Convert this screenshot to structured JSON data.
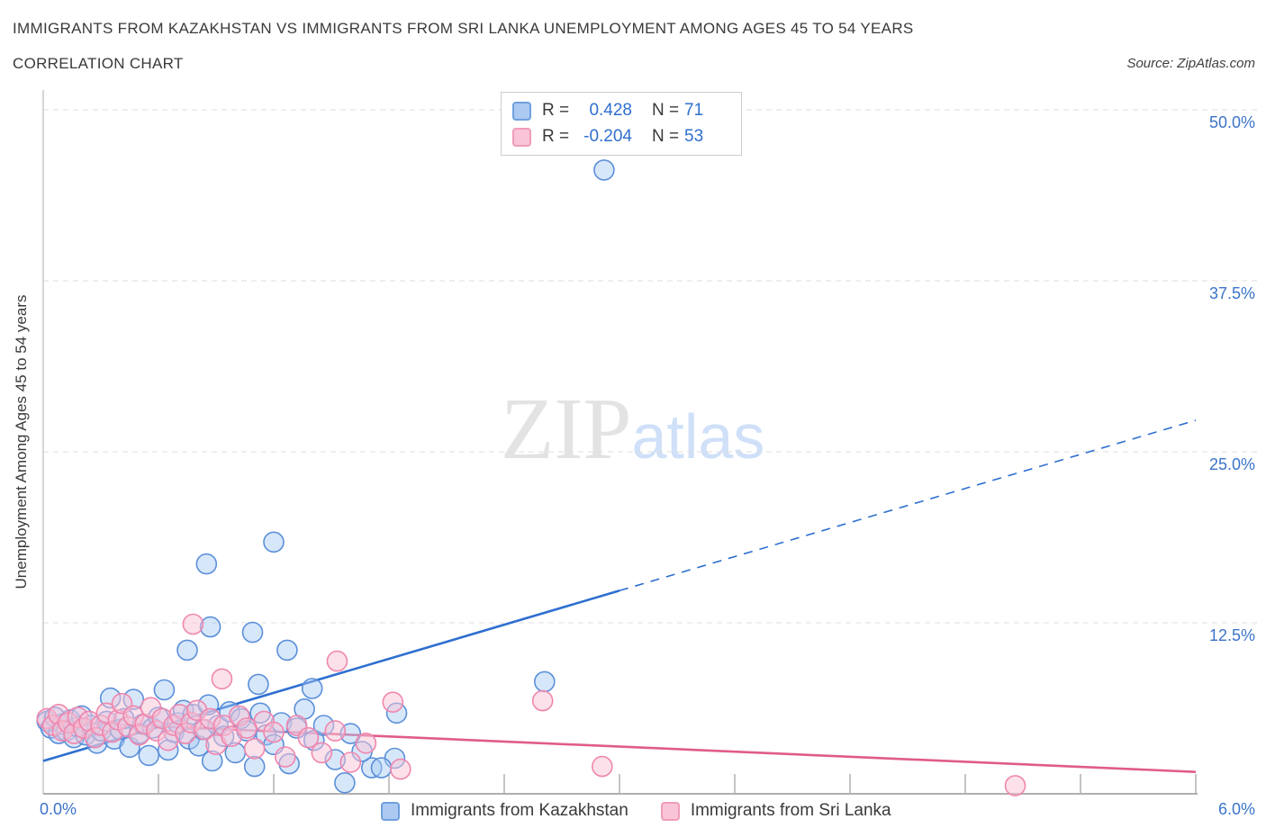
{
  "header": {
    "title": "IMMIGRANTS FROM KAZAKHSTAN VS IMMIGRANTS FROM SRI LANKA UNEMPLOYMENT AMONG AGES 45 TO 54 YEARS",
    "subtitle": "CORRELATION CHART",
    "source": "Source: ZipAtlas.com"
  },
  "watermark": {
    "zip": "ZIP",
    "atlas": "atlas"
  },
  "stats_legend": {
    "rows": [
      {
        "series": "Immigrants from Kazakhstan",
        "r_label": "R =",
        "r_value": "0.428",
        "n_label": "N =",
        "n_value": "71"
      },
      {
        "series": "Immigrants from Sri Lanka",
        "r_label": "R =",
        "r_value": "-0.204",
        "n_label": "N =",
        "n_value": "53"
      }
    ]
  },
  "bottom_legend": {
    "items": [
      {
        "label": "Immigrants from Kazakhstan",
        "fill": "#abc9f1",
        "border": "#70a0dd"
      },
      {
        "label": "Immigrants from Sri Lanka",
        "fill": "#f9c4d7",
        "border": "#ef9cba"
      }
    ]
  },
  "chart_data": {
    "type": "scatter",
    "ylabel": "Unemployment Among Ages 45 to 54 years",
    "x_range": [
      0,
      6.0
    ],
    "y_range": [
      0,
      51.4
    ],
    "grid": "horizontal-dashed",
    "legend_position": "bottom",
    "x_axis_labels": {
      "left": "0.0%",
      "right": "6.0%"
    },
    "y_ticks": [
      {
        "value": 50.0,
        "label": "50.0%"
      },
      {
        "value": 37.5,
        "label": "37.5%"
      },
      {
        "value": 25.0,
        "label": "25.0%"
      },
      {
        "value": 12.5,
        "label": "12.5%"
      }
    ],
    "x_tick_values": [
      0.6,
      1.2,
      1.8,
      2.4,
      3.0,
      3.6,
      4.2,
      4.8,
      5.4,
      6.0
    ],
    "series": [
      {
        "name": "Immigrants from Kazakhstan",
        "r": 0.428,
        "n": 71,
        "fill": "rgba(166,201,243,0.45)",
        "stroke": "#5b8fd9",
        "points": [
          [
            2.92,
            45.6
          ],
          [
            1.2,
            18.4
          ],
          [
            0.85,
            16.8
          ],
          [
            0.87,
            12.2
          ],
          [
            1.09,
            11.8
          ],
          [
            0.75,
            10.5
          ],
          [
            1.27,
            10.5
          ],
          [
            2.61,
            8.2
          ],
          [
            1.12,
            8.0
          ],
          [
            1.4,
            7.7
          ],
          [
            1.84,
            5.9
          ],
          [
            1.83,
            2.6
          ],
          [
            1.71,
            1.9
          ],
          [
            1.76,
            1.9
          ],
          [
            1.57,
            0.8
          ],
          [
            0.02,
            5.3
          ],
          [
            0.04,
            4.8
          ],
          [
            0.06,
            5.6
          ],
          [
            0.08,
            4.4
          ],
          [
            0.1,
            5.1
          ],
          [
            0.12,
            4.6
          ],
          [
            0.14,
            5.4
          ],
          [
            0.16,
            4.1
          ],
          [
            0.18,
            4.9
          ],
          [
            0.2,
            5.7
          ],
          [
            0.22,
            4.3
          ],
          [
            0.25,
            5.0
          ],
          [
            0.28,
            3.7
          ],
          [
            0.3,
            4.6
          ],
          [
            0.33,
            5.3
          ],
          [
            0.35,
            7.0
          ],
          [
            0.37,
            4.0
          ],
          [
            0.4,
            4.7
          ],
          [
            0.42,
            5.5
          ],
          [
            0.45,
            3.4
          ],
          [
            0.47,
            6.9
          ],
          [
            0.5,
            4.4
          ],
          [
            0.52,
            5.1
          ],
          [
            0.55,
            2.8
          ],
          [
            0.57,
            4.8
          ],
          [
            0.6,
            5.6
          ],
          [
            0.63,
            7.6
          ],
          [
            0.65,
            3.2
          ],
          [
            0.68,
            4.5
          ],
          [
            0.7,
            5.2
          ],
          [
            0.73,
            6.1
          ],
          [
            0.76,
            4.0
          ],
          [
            0.78,
            5.8
          ],
          [
            0.81,
            3.5
          ],
          [
            0.83,
            4.7
          ],
          [
            0.86,
            6.5
          ],
          [
            0.88,
            2.4
          ],
          [
            0.91,
            5.0
          ],
          [
            0.94,
            4.2
          ],
          [
            0.97,
            6.0
          ],
          [
            1.0,
            3.0
          ],
          [
            1.03,
            5.5
          ],
          [
            1.06,
            4.6
          ],
          [
            1.1,
            2.0
          ],
          [
            1.13,
            5.9
          ],
          [
            1.16,
            4.3
          ],
          [
            1.2,
            3.6
          ],
          [
            1.24,
            5.2
          ],
          [
            1.28,
            2.2
          ],
          [
            1.32,
            4.8
          ],
          [
            1.36,
            6.2
          ],
          [
            1.41,
            3.9
          ],
          [
            1.46,
            5.0
          ],
          [
            1.52,
            2.5
          ],
          [
            1.6,
            4.4
          ],
          [
            1.66,
            3.1
          ]
        ]
      },
      {
        "name": "Immigrants from Sri Lanka",
        "r": -0.204,
        "n": 53,
        "fill": "rgba(249,195,214,0.5)",
        "stroke": "#ef86ae",
        "points": [
          [
            0.78,
            12.4
          ],
          [
            1.53,
            9.7
          ],
          [
            0.93,
            8.4
          ],
          [
            1.82,
            6.7
          ],
          [
            2.6,
            6.8
          ],
          [
            2.91,
            2.0
          ],
          [
            5.06,
            0.6
          ],
          [
            1.86,
            1.8
          ],
          [
            0.02,
            5.5
          ],
          [
            0.05,
            5.0
          ],
          [
            0.08,
            5.8
          ],
          [
            0.1,
            4.6
          ],
          [
            0.13,
            5.2
          ],
          [
            0.16,
            4.4
          ],
          [
            0.18,
            5.6
          ],
          [
            0.21,
            4.8
          ],
          [
            0.24,
            5.3
          ],
          [
            0.27,
            4.1
          ],
          [
            0.3,
            5.0
          ],
          [
            0.33,
            5.9
          ],
          [
            0.36,
            4.5
          ],
          [
            0.39,
            5.4
          ],
          [
            0.41,
            6.6
          ],
          [
            0.44,
            4.9
          ],
          [
            0.47,
            5.7
          ],
          [
            0.5,
            4.3
          ],
          [
            0.53,
            5.1
          ],
          [
            0.56,
            6.3
          ],
          [
            0.59,
            4.6
          ],
          [
            0.62,
            5.5
          ],
          [
            0.65,
            3.9
          ],
          [
            0.68,
            5.0
          ],
          [
            0.71,
            5.8
          ],
          [
            0.74,
            4.4
          ],
          [
            0.77,
            5.2
          ],
          [
            0.8,
            6.1
          ],
          [
            0.84,
            4.7
          ],
          [
            0.87,
            5.5
          ],
          [
            0.9,
            3.6
          ],
          [
            0.94,
            5.0
          ],
          [
            0.98,
            4.2
          ],
          [
            1.02,
            5.7
          ],
          [
            1.06,
            4.8
          ],
          [
            1.1,
            3.3
          ],
          [
            1.15,
            5.3
          ],
          [
            1.2,
            4.5
          ],
          [
            1.26,
            2.7
          ],
          [
            1.32,
            5.0
          ],
          [
            1.38,
            4.1
          ],
          [
            1.45,
            3.0
          ],
          [
            1.52,
            4.6
          ],
          [
            1.6,
            2.3
          ],
          [
            1.68,
            3.7
          ]
        ]
      }
    ],
    "trendlines": [
      {
        "series": "Immigrants from Kazakhstan",
        "color": "#2e6fd0",
        "x0": 0,
        "y0": 2.4,
        "x1": 6.0,
        "y1": 27.3,
        "solid_until_x": 3.0
      },
      {
        "series": "Immigrants from Sri Lanka",
        "color": "#e05c8a",
        "x0": 0,
        "y0": 5.3,
        "x1": 6.0,
        "y1": 1.6
      }
    ]
  }
}
